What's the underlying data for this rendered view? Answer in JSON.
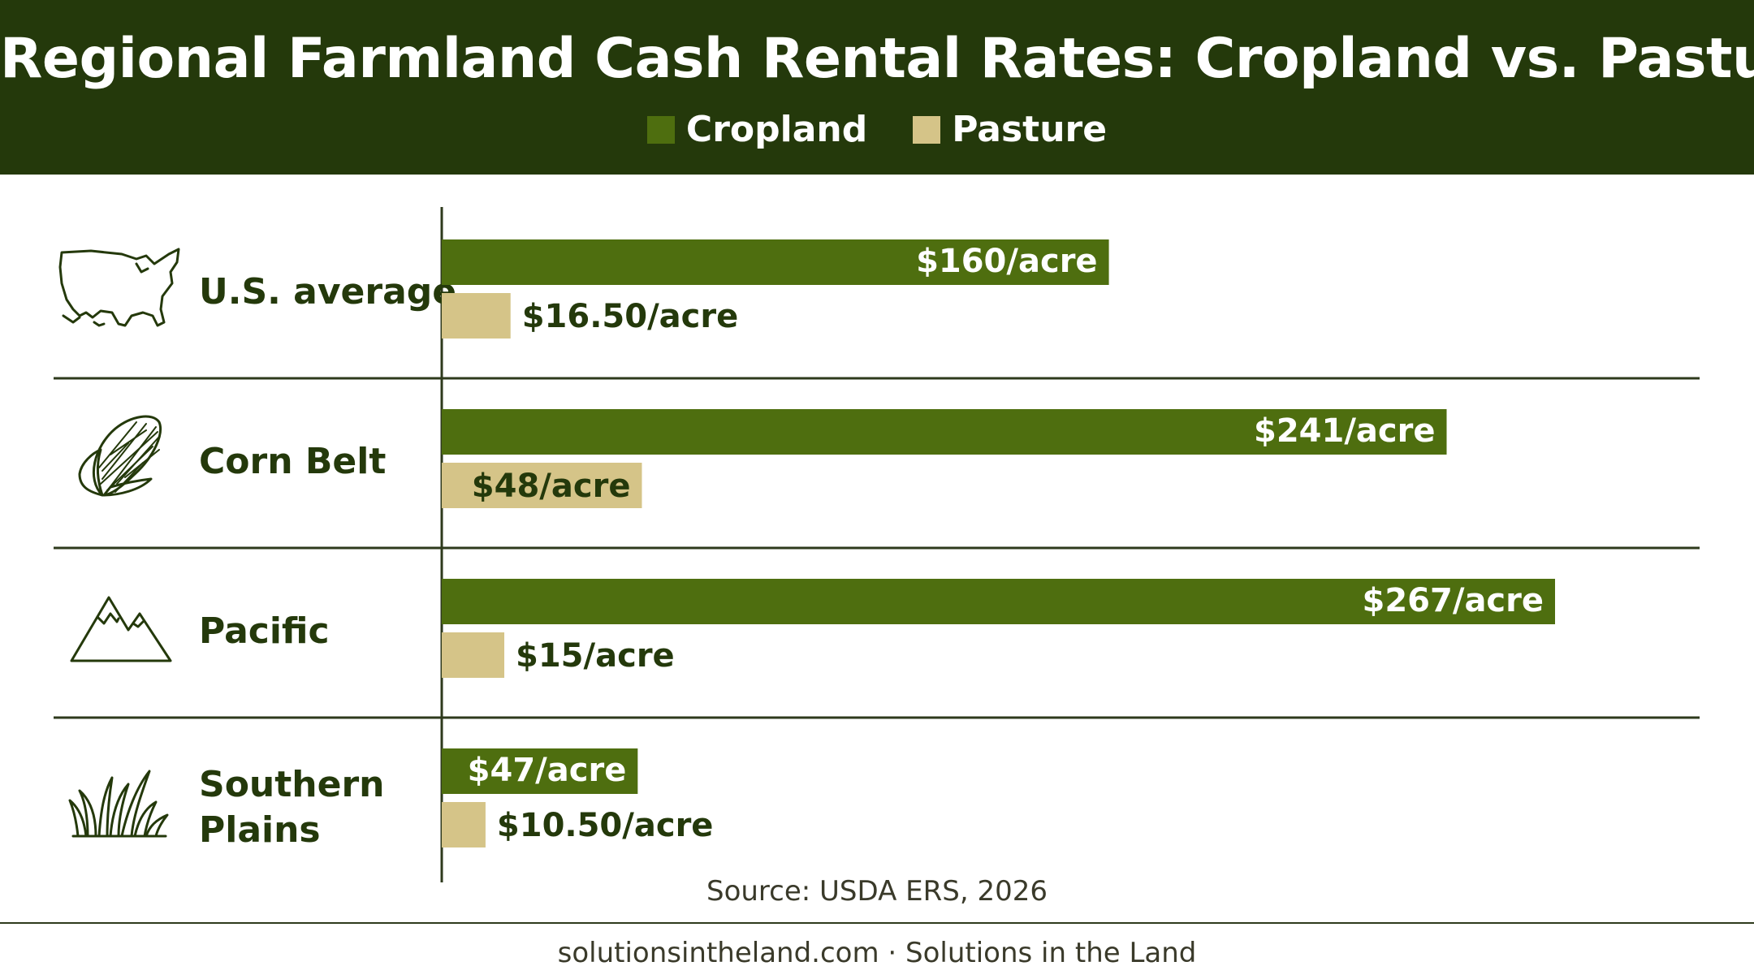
{
  "header": {
    "title": "Regional Farmland Cash Rental Rates: Cropland vs. Pasture"
  },
  "legend": [
    {
      "label": "Cropland",
      "color": "#4e6e0f"
    },
    {
      "label": "Pasture",
      "color": "#d5c488"
    }
  ],
  "chart_data": {
    "type": "bar",
    "orientation": "horizontal",
    "categories": [
      "U.S. average",
      "Corn Belt",
      "Pacific",
      "Southern Plains"
    ],
    "category_icons": [
      "us-map-icon",
      "corn-icon",
      "mountain-icon",
      "grass-icon"
    ],
    "series": [
      {
        "name": "Cropland",
        "color": "#4e6e0f",
        "values": [
          160,
          241,
          267,
          47
        ],
        "labels": [
          "$160/acre",
          "$241/acre",
          "$267/acre",
          "$47/acre"
        ]
      },
      {
        "name": "Pasture",
        "color": "#d5c488",
        "values": [
          16.5,
          48,
          15,
          10.5
        ],
        "labels": [
          "$16.50/acre",
          "$48/acre",
          "$15/acre",
          "$10.50/acre"
        ]
      }
    ],
    "title": "Regional Farmland Cash Rental Rates: Cropland vs. Pasture",
    "xlabel": "",
    "ylabel": "",
    "xlim": [
      0,
      267
    ],
    "grid": false,
    "legend_position": "top-center"
  },
  "source": "Source: USDA ERS, 2026",
  "footer": "solutionsintheland.com · Solutions in the Land"
}
